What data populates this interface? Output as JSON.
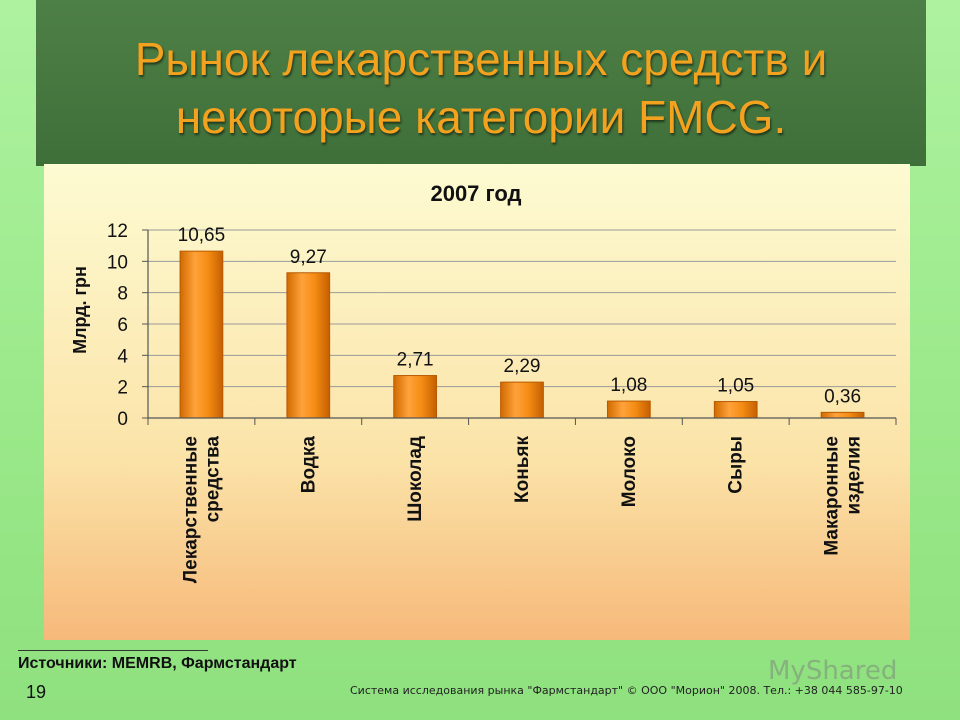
{
  "slide": {
    "title_line1": "Рынок лекарственных средств и",
    "title_line2": "некоторые категории  FMCG.",
    "source": "Источники: MEMRB, Фармстандарт",
    "page_number": "19",
    "footer": "Система исследования рынка \"Фармстандарт\" © ООО \"Морион\" 2008. Тел.: +38 044 585-97-10",
    "watermark": "MyShared"
  },
  "chart_data": {
    "type": "bar",
    "title": "2007 год",
    "ylabel": "Млрд. грн",
    "categories": [
      [
        "Лекарственные",
        "средства"
      ],
      [
        "Водка"
      ],
      [
        "Шоколад"
      ],
      [
        "Коньяк"
      ],
      [
        "Молоко"
      ],
      [
        "Сыры"
      ],
      [
        "Макаронные",
        "изделия"
      ]
    ],
    "values": [
      10.65,
      9.27,
      2.71,
      2.29,
      1.08,
      1.05,
      0.36
    ],
    "value_labels": [
      "10,65",
      "9,27",
      "2,71",
      "2,29",
      "1,08",
      "1,05",
      "0,36"
    ],
    "yticks": [
      0,
      2,
      4,
      6,
      8,
      10,
      12
    ],
    "ylim": [
      0,
      12
    ],
    "grid": true,
    "bar_color": "#f08a12"
  }
}
